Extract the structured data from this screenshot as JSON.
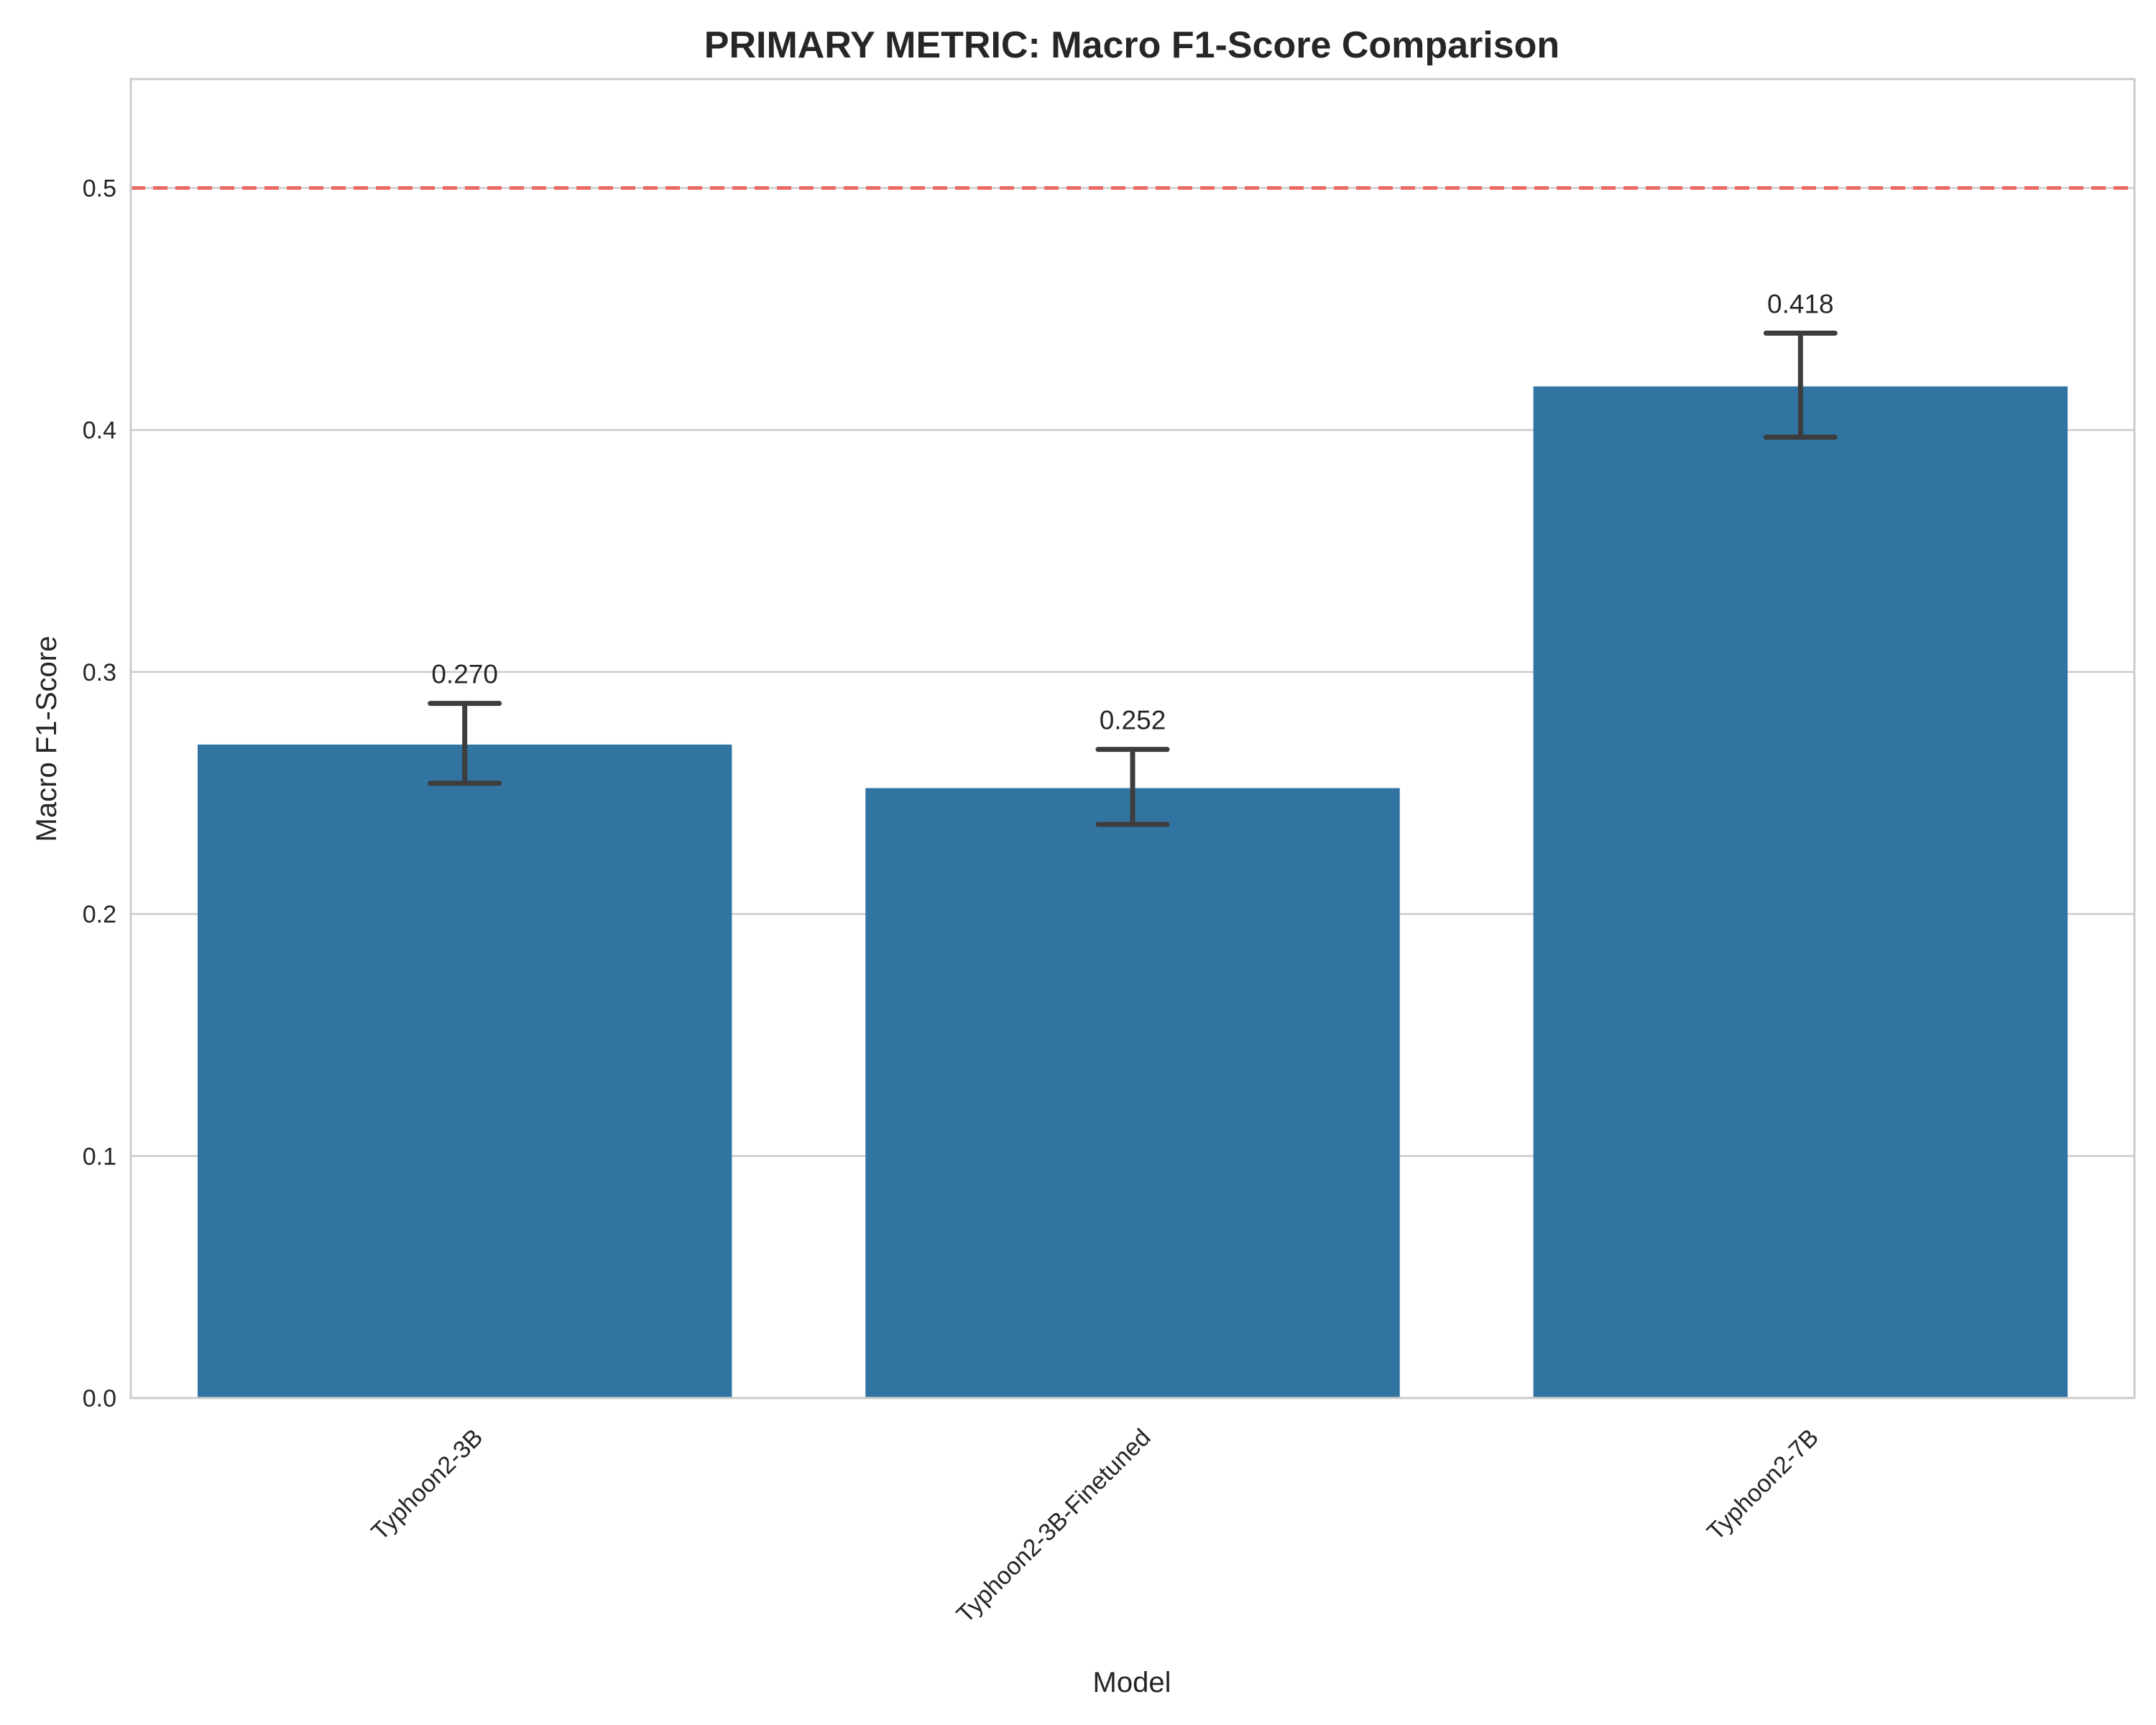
{
  "chart_data": {
    "type": "bar",
    "title": "PRIMARY METRIC: Macro F1-Score Comparison",
    "xlabel": "Model",
    "ylabel": "Macro F1-Score",
    "categories": [
      "Typhoon2-3B",
      "Typhoon2-3B-Finetuned",
      "Typhoon2-7B"
    ],
    "values": [
      0.27,
      0.252,
      0.418
    ],
    "value_labels": [
      "0.270",
      "0.252",
      "0.418"
    ],
    "error_low": [
      0.254,
      0.237,
      0.397
    ],
    "error_high": [
      0.287,
      0.268,
      0.44
    ],
    "reference_line": {
      "value": 0.5,
      "style": "dashed",
      "color": "#ec6a63"
    },
    "ylim": [
      0,
      0.545
    ],
    "yticks": [
      0.0,
      0.1,
      0.2,
      0.3,
      0.4,
      0.5
    ],
    "ytick_labels": [
      "0.0",
      "0.1",
      "0.2",
      "0.3",
      "0.4",
      "0.5"
    ],
    "grid": {
      "y": true,
      "x": false
    },
    "bar_color": "#3274a1",
    "error_color": "#3d3d3d"
  }
}
